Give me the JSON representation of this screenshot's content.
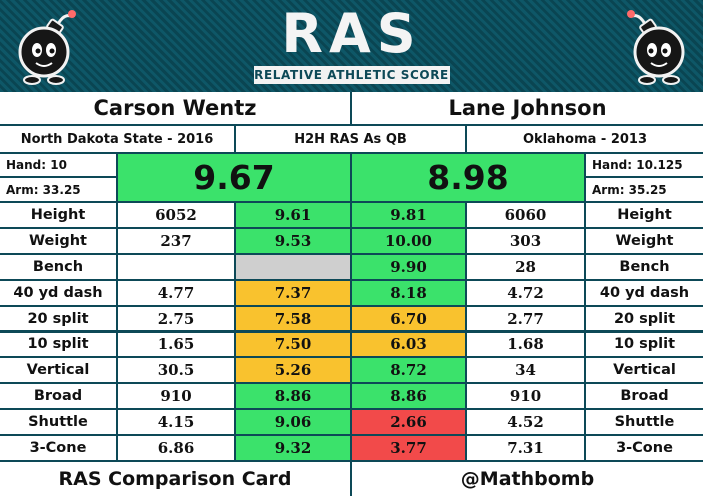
{
  "header": {
    "logo_text": "RAS",
    "logo_subtitle": "RELATIVE ATHLETIC SCORE"
  },
  "left_player": {
    "name": "Carson Wentz",
    "school": "North Dakota State - 2016",
    "hand": "Hand: 10",
    "arm": "Arm: 33.25",
    "ras": "9.67"
  },
  "right_player": {
    "name": "Lane Johnson",
    "school": "Oklahoma - 2013",
    "hand": "Hand: 10.125",
    "arm": "Arm: 35.25",
    "ras": "8.98"
  },
  "center_label": "H2H RAS As QB",
  "metrics": [
    {
      "label": "Height",
      "left_val": "6052",
      "left_score": "9.61",
      "left_color": "#3be26b",
      "right_score": "9.81",
      "right_color": "#3be26b",
      "right_val": "6060"
    },
    {
      "label": "Weight",
      "left_val": "237",
      "left_score": "9.53",
      "left_color": "#3be26b",
      "right_score": "10.00",
      "right_color": "#3be26b",
      "right_val": "303"
    },
    {
      "label": "Bench",
      "left_val": "",
      "left_score": "",
      "left_color": "#cfcfcf",
      "right_score": "9.90",
      "right_color": "#3be26b",
      "right_val": "28"
    },
    {
      "label": "40 yd dash",
      "left_val": "4.77",
      "left_score": "7.37",
      "left_color": "#f9c22e",
      "right_score": "8.18",
      "right_color": "#3be26b",
      "right_val": "4.72"
    },
    {
      "label": "20 split",
      "left_val": "2.75",
      "left_score": "7.58",
      "left_color": "#f9c22e",
      "right_score": "6.70",
      "right_color": "#f9c22e",
      "right_val": "2.77"
    },
    {
      "label": "10 split",
      "left_val": "1.65",
      "left_score": "7.50",
      "left_color": "#f9c22e",
      "right_score": "6.03",
      "right_color": "#f9c22e",
      "right_val": "1.68"
    },
    {
      "label": "Vertical",
      "left_val": "30.5",
      "left_score": "5.26",
      "left_color": "#f9c22e",
      "right_score": "8.72",
      "right_color": "#3be26b",
      "right_val": "34"
    },
    {
      "label": "Broad",
      "left_val": "910",
      "left_score": "8.86",
      "left_color": "#3be26b",
      "right_score": "8.86",
      "right_color": "#3be26b",
      "right_val": "910"
    },
    {
      "label": "Shuttle",
      "left_val": "4.15",
      "left_score": "9.06",
      "left_color": "#3be26b",
      "right_score": "2.66",
      "right_color": "#f24a4a",
      "right_val": "4.52"
    },
    {
      "label": "3-Cone",
      "left_val": "6.86",
      "left_score": "9.32",
      "left_color": "#3be26b",
      "right_score": "3.77",
      "right_color": "#f24a4a",
      "right_val": "7.31"
    }
  ],
  "footer": {
    "left": "RAS Comparison Card",
    "right": "@Mathbomb"
  },
  "icons": {
    "mascot": "bomb-mascot-icon"
  }
}
